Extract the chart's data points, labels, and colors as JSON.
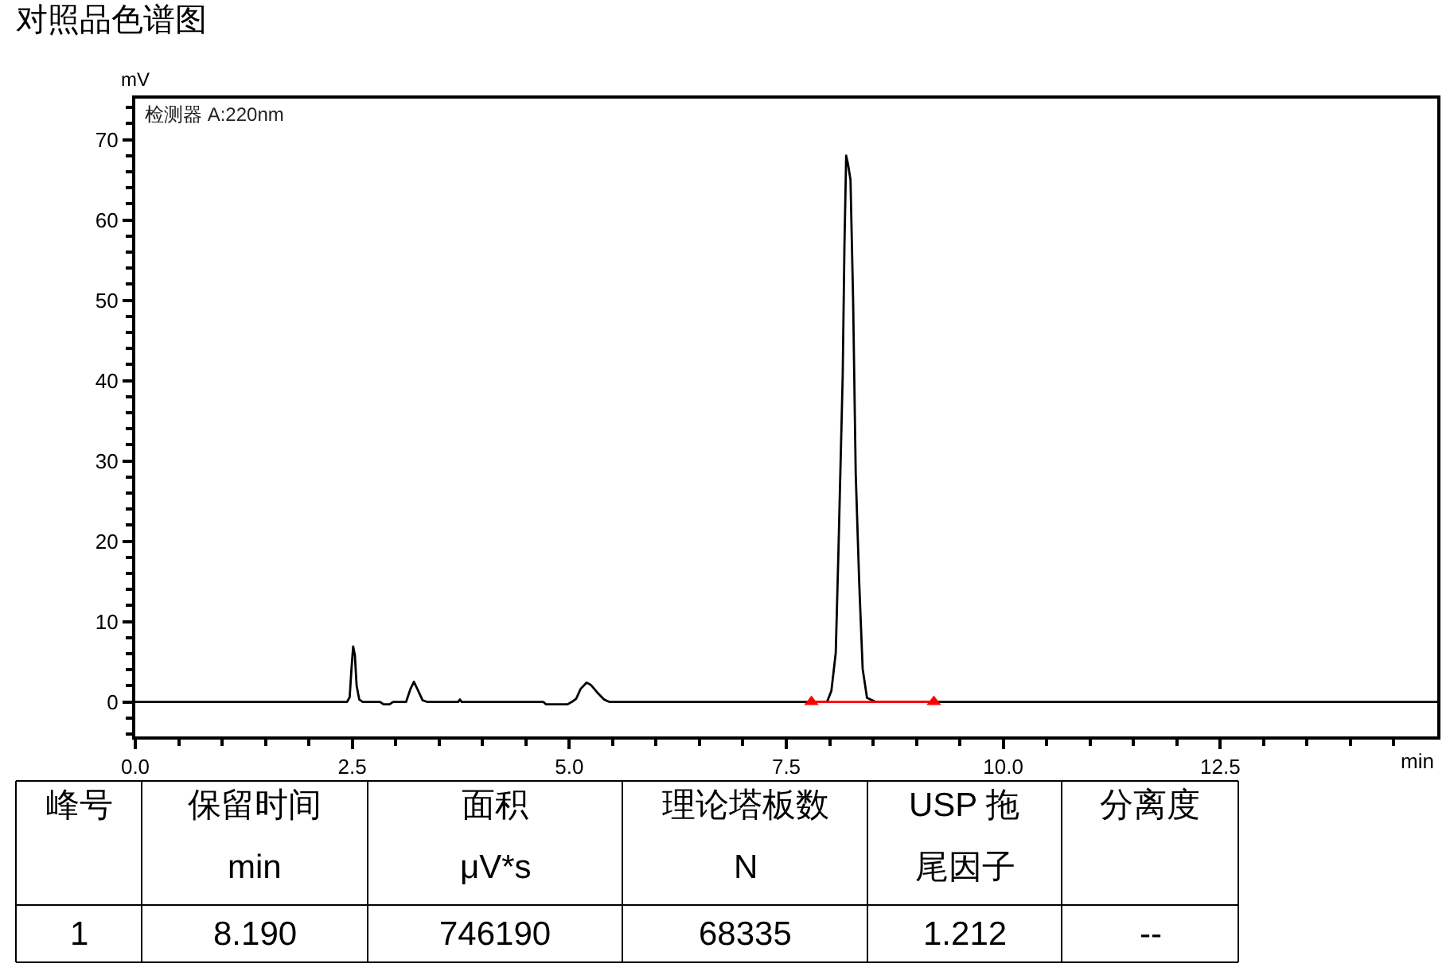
{
  "chart_data": [
    {
      "type": "line",
      "title": "对照品色谱图",
      "xlabel": "min",
      "ylabel": "mV",
      "annotations": [
        "检测器 A:220nm"
      ],
      "x": [
        0,
        2.44,
        2.47,
        2.49,
        2.51,
        2.53,
        2.55,
        2.58,
        2.62,
        2.82,
        2.86,
        2.93,
        2.97,
        3.12,
        3.17,
        3.21,
        3.25,
        3.31,
        3.36,
        3.72,
        3.74,
        3.76,
        4.7,
        4.73,
        4.98,
        5.03,
        5.08,
        5.13,
        5.2,
        5.25,
        5.32,
        5.4,
        5.46,
        7.97,
        8.02,
        8.07,
        8.1,
        8.15,
        8.17,
        8.19,
        8.21,
        8.24,
        8.27,
        8.3,
        8.34,
        8.38,
        8.43,
        8.53,
        15
      ],
      "series": [
        {
          "color": "#000000",
          "values": [
            0,
            0,
            0.6,
            4,
            6.9,
            5.8,
            2,
            0.3,
            0,
            0,
            -0.3,
            -0.3,
            0,
            0,
            1.6,
            2.5,
            1.6,
            0.2,
            0,
            0,
            0.3,
            0,
            0,
            -0.3,
            -0.3,
            0,
            0.4,
            1.6,
            2.4,
            2.1,
            1.2,
            0.3,
            0,
            0,
            1.4,
            6.1,
            18.3,
            40.6,
            56.8,
            68,
            67,
            65,
            50,
            28.4,
            14.9,
            4.1,
            0.5,
            0,
            0
          ]
        },
        {
          "color": "#ff0000",
          "x": [
            7.79,
            9.2
          ],
          "values": [
            0,
            0
          ],
          "marker": "triangle"
        }
      ],
      "xlim": [
        0,
        15
      ],
      "ylim": [
        -4.3,
        75.1
      ],
      "xticks": [
        {
          "value": 0,
          "label": "0.0"
        },
        {
          "value": 0.5,
          "label": null
        },
        {
          "value": 1,
          "label": null
        },
        {
          "value": 1.5,
          "label": null
        },
        {
          "value": 2,
          "label": null
        },
        2.5,
        {
          "value": 3,
          "label": null
        },
        {
          "value": 3.5,
          "label": null
        },
        {
          "value": 4,
          "label": null
        },
        {
          "value": 4.5,
          "label": null
        },
        {
          "value": 5,
          "label": "5.0"
        },
        {
          "value": 5.5,
          "label": null
        },
        {
          "value": 6,
          "label": null
        },
        {
          "value": 6.5,
          "label": null
        },
        {
          "value": 7,
          "label": null
        },
        7.5,
        {
          "value": 8,
          "label": null
        },
        {
          "value": 8.5,
          "label": null
        },
        {
          "value": 9,
          "label": null
        },
        {
          "value": 9.5,
          "label": null
        },
        {
          "value": 10,
          "label": "10.0"
        },
        {
          "value": 10.5,
          "label": null
        },
        {
          "value": 11,
          "label": null
        },
        {
          "value": 11.5,
          "label": null
        },
        {
          "value": 12,
          "label": null
        },
        12.5,
        {
          "value": 13,
          "label": null
        },
        {
          "value": 13.5,
          "label": null
        },
        {
          "value": 14,
          "label": null
        },
        {
          "value": 14.5,
          "label": null
        }
      ],
      "yticks": [
        {
          "value": -4,
          "label": null
        },
        {
          "value": -2,
          "label": null
        },
        0,
        {
          "value": 2,
          "label": null
        },
        {
          "value": 4,
          "label": null
        },
        {
          "value": 6,
          "label": null
        },
        {
          "value": 8,
          "label": null
        },
        10,
        {
          "value": 12,
          "label": null
        },
        {
          "value": 14,
          "label": null
        },
        {
          "value": 16,
          "label": null
        },
        {
          "value": 18,
          "label": null
        },
        20,
        {
          "value": 22,
          "label": null
        },
        {
          "value": 24,
          "label": null
        },
        {
          "value": 26,
          "label": null
        },
        {
          "value": 28,
          "label": null
        },
        30,
        {
          "value": 32,
          "label": null
        },
        {
          "value": 34,
          "label": null
        },
        {
          "value": 36,
          "label": null
        },
        {
          "value": 38,
          "label": null
        },
        40,
        {
          "value": 42,
          "label": null
        },
        {
          "value": 44,
          "label": null
        },
        {
          "value": 46,
          "label": null
        },
        {
          "value": 48,
          "label": null
        },
        50,
        {
          "value": 52,
          "label": null
        },
        {
          "value": 54,
          "label": null
        },
        {
          "value": 56,
          "label": null
        },
        {
          "value": 58,
          "label": null
        },
        60,
        {
          "value": 62,
          "label": null
        },
        {
          "value": 64,
          "label": null
        },
        {
          "value": 66,
          "label": null
        },
        {
          "value": 68,
          "label": null
        },
        70,
        {
          "value": 72,
          "label": null
        },
        {
          "value": 74,
          "label": null
        }
      ]
    },
    {
      "type": "other",
      "categories": [
        "峰号",
        "保留时间\nmin",
        "面积\nμV*s",
        "理论塔板数\nN",
        "USP 拖尾因子",
        "分离度"
      ],
      "cell_labels": [
        [
          "1",
          "8.190",
          "746190",
          "68335",
          "1.212",
          "--"
        ]
      ]
    }
  ]
}
